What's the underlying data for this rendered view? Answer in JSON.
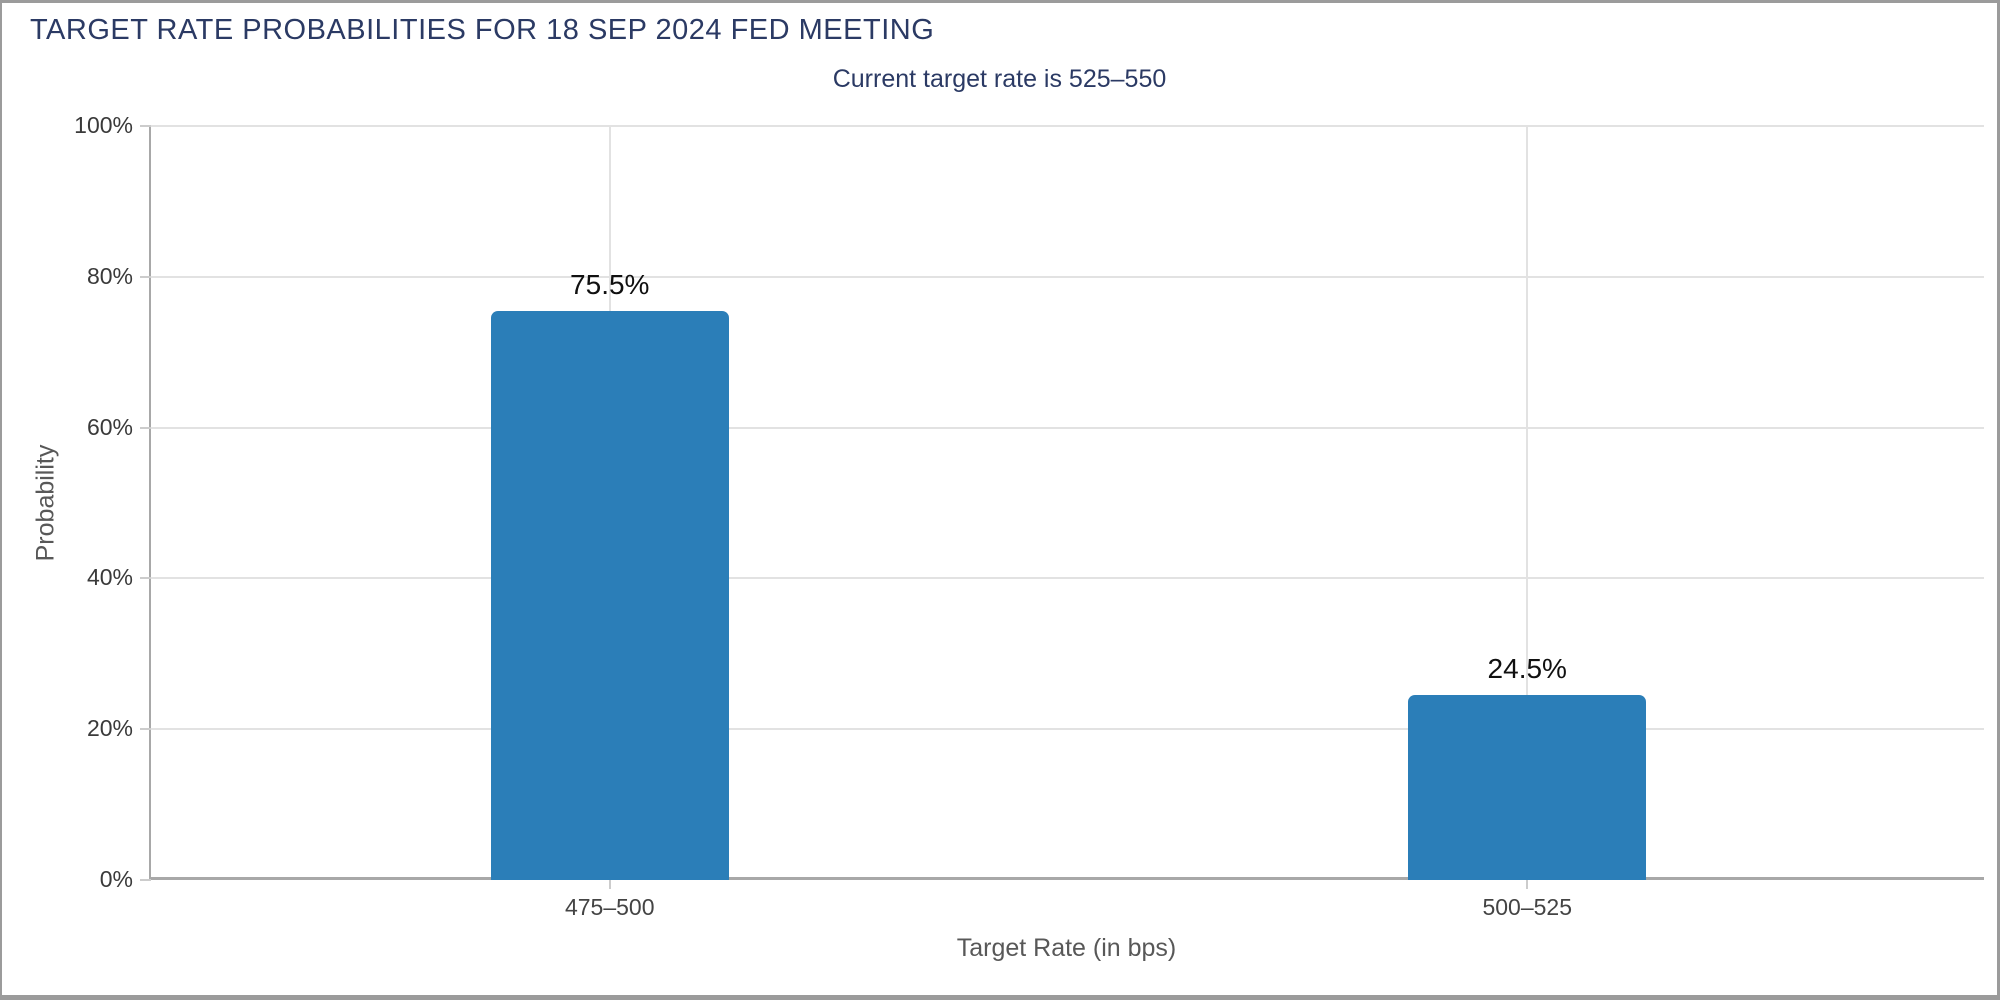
{
  "chart_data": {
    "type": "bar",
    "title": "TARGET RATE PROBABILITIES FOR 18 SEP 2024 FED MEETING",
    "subtitle": "Current target rate is 525–550",
    "categories": [
      "475–500",
      "500–525"
    ],
    "values": [
      75.5,
      24.5
    ],
    "value_labels": [
      "75.5%",
      "24.5%"
    ],
    "xlabel": "Target Rate (in bps)",
    "ylabel": "Probability",
    "ylim": [
      0,
      100
    ],
    "yticks": [
      0,
      20,
      40,
      60,
      80,
      100
    ],
    "ytick_labels": [
      "0%",
      "20%",
      "40%",
      "60%",
      "80%",
      "100%"
    ],
    "grid": true,
    "legend": false,
    "bar_color": "#2b7eb8",
    "title_color": "#2b3a64",
    "gridline_color": "#e2e2e2",
    "axis_color": "#a8a8a8"
  }
}
